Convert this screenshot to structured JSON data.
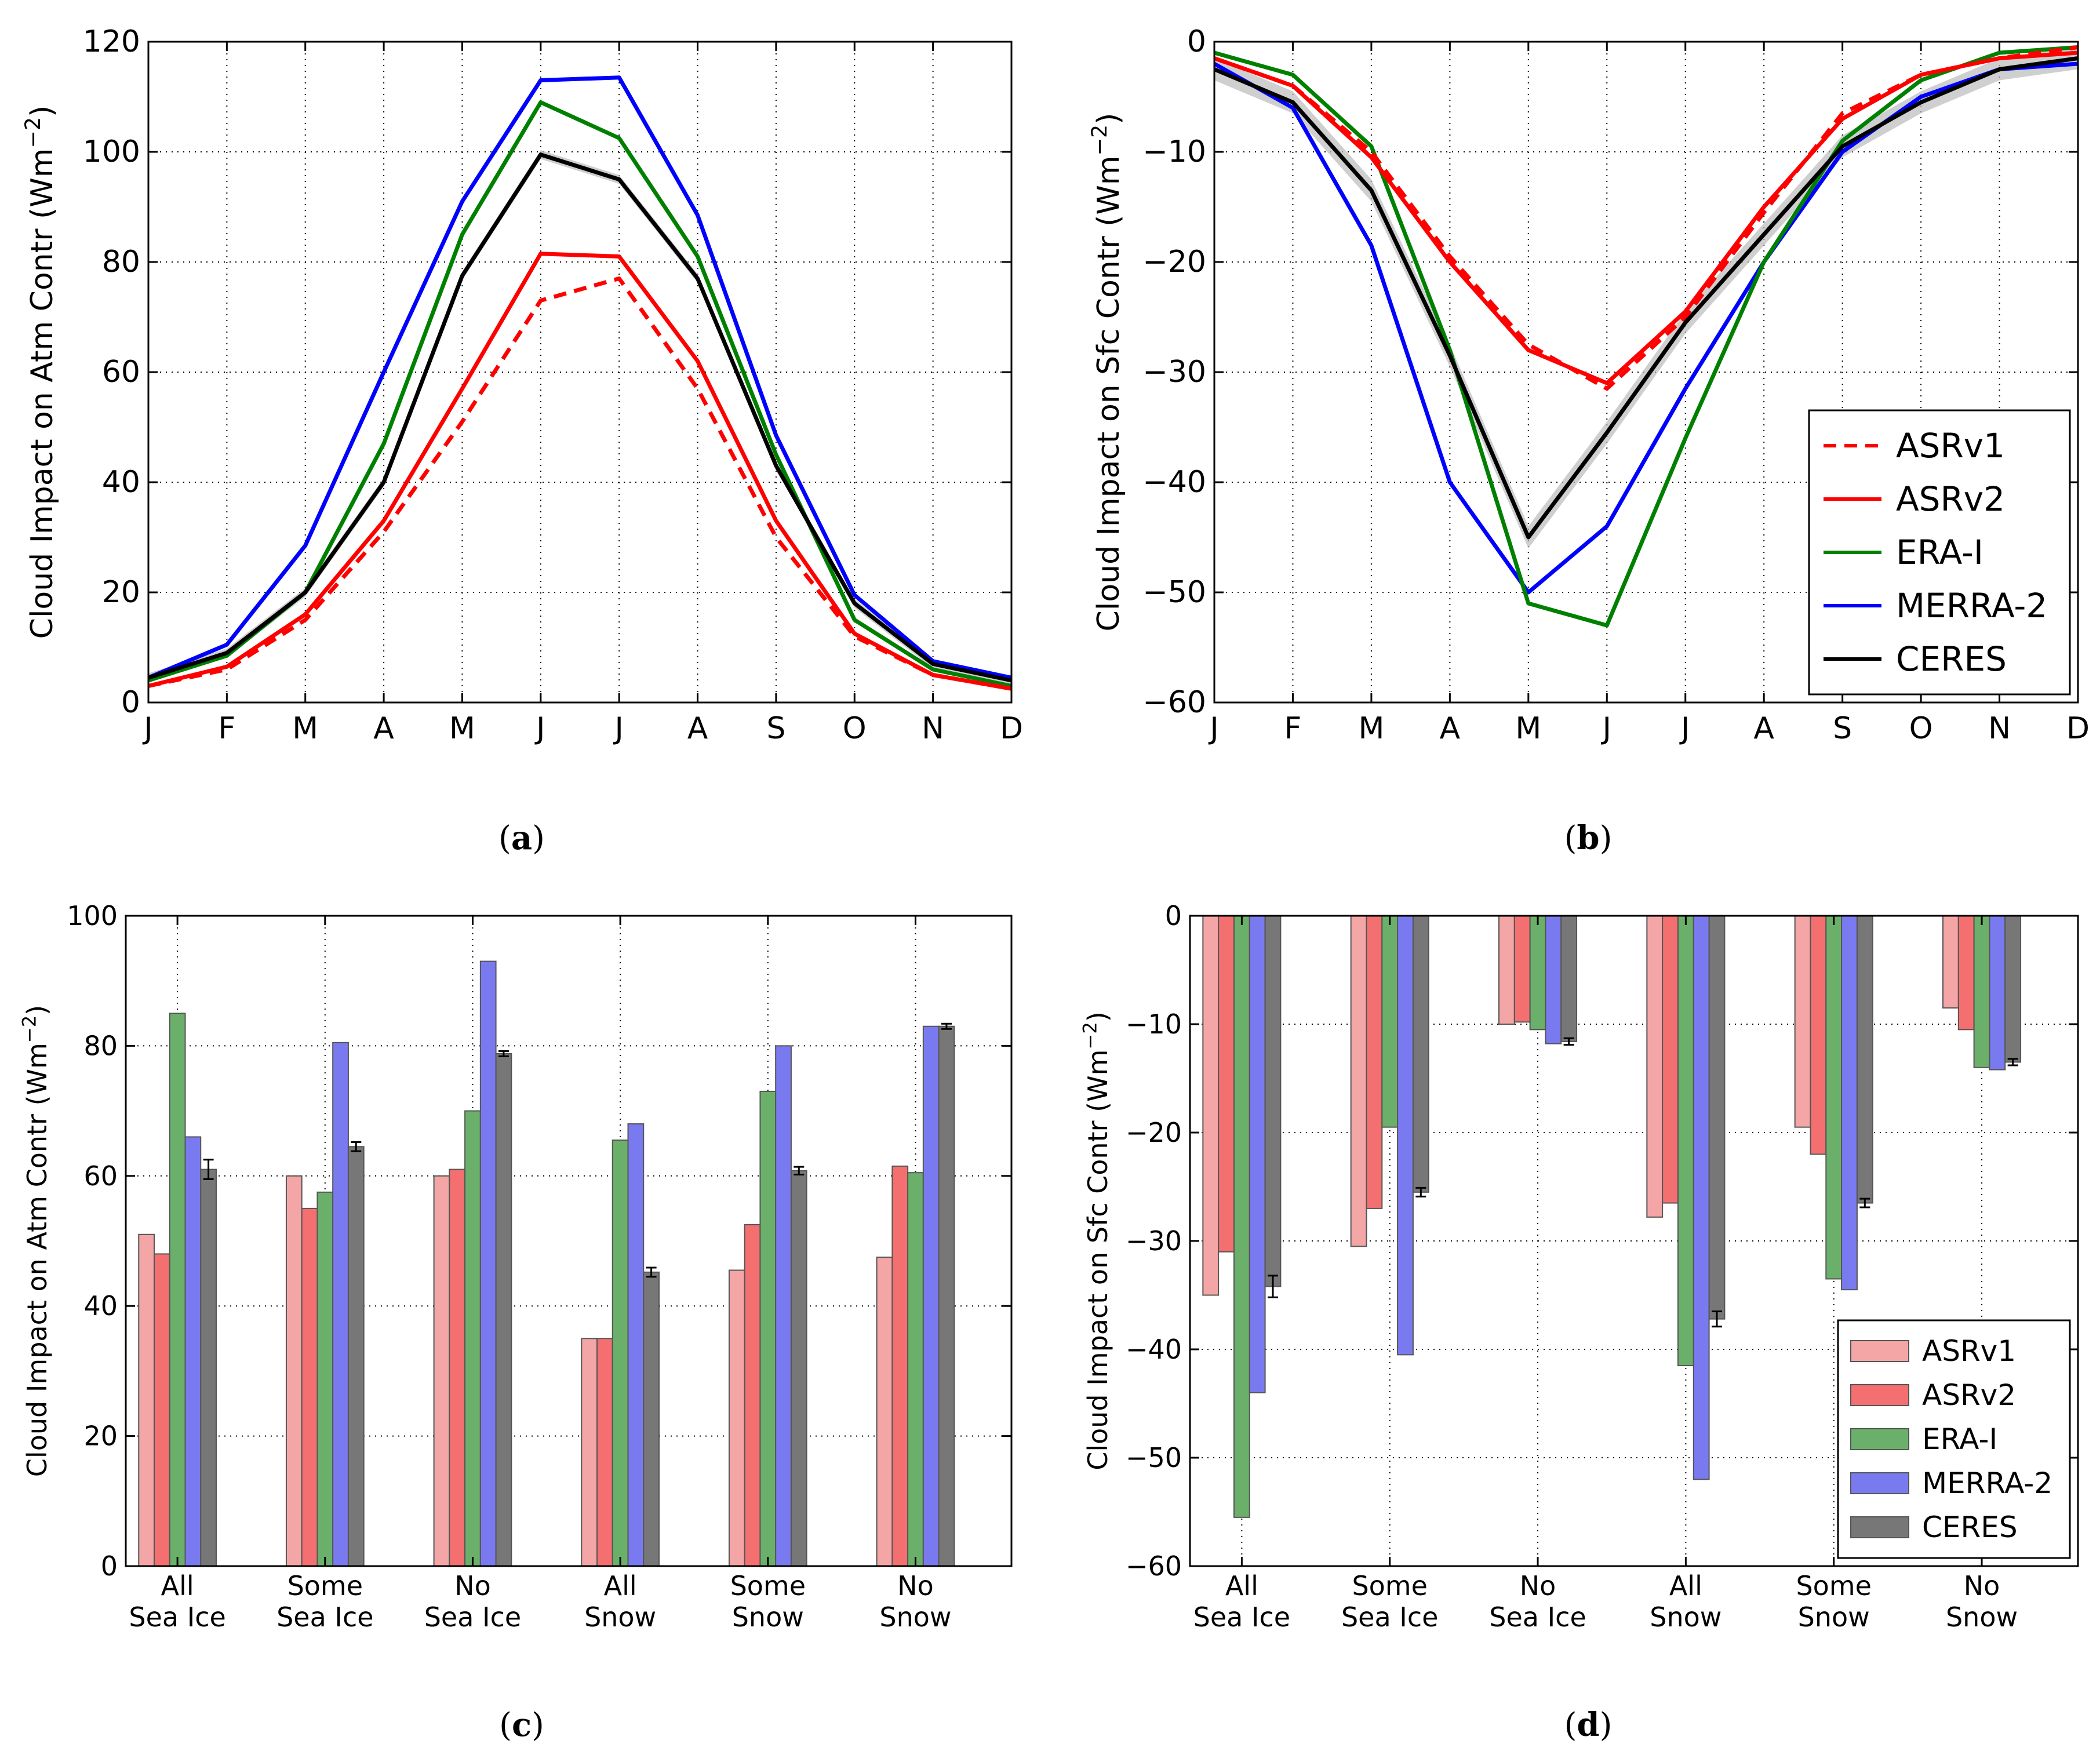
{
  "colors": {
    "ASRv1": "#ff0000",
    "ASRv2": "#ff0000",
    "ERA-I": "#008000",
    "MERRA-2": "#0000ff",
    "CERES": "#000000",
    "bar_ASRv1": "#f4a6a6",
    "bar_ASRv2": "#f47070",
    "bar_ERA-I": "#6ab06a",
    "bar_MERRA-2": "#7a7af0",
    "bar_CERES": "#777777"
  },
  "chart_data": [
    {
      "id": "a",
      "type": "line",
      "panel_label": "a",
      "ylabel": "Cloud Impact on Atm Contr (Wm",
      "ylabel_sup": "−2",
      "ylabel_end": ")",
      "categories": [
        "J",
        "F",
        "M",
        "A",
        "M",
        "J",
        "J",
        "A",
        "S",
        "O",
        "N",
        "D"
      ],
      "ylim": [
        0,
        120
      ],
      "yticks": [
        0,
        20,
        40,
        60,
        80,
        100,
        120
      ],
      "ytick_labels": [
        "0",
        "20",
        "40",
        "60",
        "80",
        "100",
        "120"
      ],
      "grid": true,
      "series": [
        {
          "name": "ASRv1",
          "style": "dashed",
          "values": [
            3.0,
            6.0,
            15.0,
            31.0,
            51.0,
            73.0,
            77.0,
            57.0,
            30.0,
            12.0,
            5.0,
            2.5
          ]
        },
        {
          "name": "ASRv2",
          "style": "solid",
          "values": [
            3.0,
            6.5,
            16.0,
            33.0,
            57.0,
            81.5,
            81.0,
            62.0,
            33.0,
            12.5,
            5.0,
            2.5
          ]
        },
        {
          "name": "ERA-I",
          "style": "solid",
          "values": [
            4.0,
            8.5,
            20.0,
            47.0,
            85.0,
            109.0,
            102.5,
            81.0,
            45.0,
            15.0,
            6.0,
            3.0
          ]
        },
        {
          "name": "MERRA-2",
          "style": "solid",
          "values": [
            4.5,
            10.5,
            28.5,
            60.0,
            91.0,
            113.0,
            113.5,
            88.5,
            48.5,
            19.5,
            7.5,
            4.5
          ]
        },
        {
          "name": "CERES",
          "style": "solid",
          "band": 0.8,
          "values": [
            4.5,
            9.0,
            20.0,
            40.0,
            77.5,
            99.5,
            95.0,
            77.0,
            43.0,
            18.0,
            7.0,
            4.0
          ]
        }
      ]
    },
    {
      "id": "b",
      "type": "line",
      "panel_label": "b",
      "ylabel": "Cloud Impact on Sfc Contr (Wm",
      "ylabel_sup": "−2",
      "ylabel_end": ")",
      "categories": [
        "J",
        "F",
        "M",
        "A",
        "M",
        "J",
        "J",
        "A",
        "S",
        "O",
        "N",
        "D"
      ],
      "ylim": [
        -60,
        0
      ],
      "yticks": [
        -60,
        -50,
        -40,
        -30,
        -20,
        -10,
        0
      ],
      "ytick_labels": [
        "−60",
        "−50",
        "−40",
        "−30",
        "−20",
        "−10",
        "0"
      ],
      "grid": true,
      "legend": "lower-right",
      "series": [
        {
          "name": "ASRv1",
          "style": "dashed",
          "values": [
            -1.5,
            -4.0,
            -10.0,
            -19.5,
            -27.5,
            -31.5,
            -25.0,
            -15.5,
            -6.5,
            -3.0,
            -1.5,
            -0.5
          ]
        },
        {
          "name": "ASRv2",
          "style": "solid",
          "values": [
            -1.5,
            -4.0,
            -10.5,
            -20.0,
            -28.0,
            -31.0,
            -24.5,
            -15.0,
            -7.0,
            -3.0,
            -1.5,
            -1.0
          ]
        },
        {
          "name": "ERA-I",
          "style": "solid",
          "values": [
            -1.0,
            -3.0,
            -9.5,
            -28.0,
            -51.0,
            -53.0,
            -36.0,
            -20.0,
            -9.0,
            -3.5,
            -1.0,
            -0.5
          ]
        },
        {
          "name": "MERRA-2",
          "style": "solid",
          "values": [
            -2.0,
            -6.0,
            -18.5,
            -40.0,
            -50.0,
            -44.0,
            -31.5,
            -20.0,
            -10.0,
            -5.0,
            -2.5,
            -2.0
          ]
        },
        {
          "name": "CERES",
          "style": "solid",
          "band": 1.0,
          "values": [
            -2.5,
            -5.5,
            -13.5,
            -28.5,
            -45.0,
            -35.5,
            -25.5,
            -17.5,
            -9.5,
            -5.5,
            -2.5,
            -1.5
          ]
        }
      ]
    },
    {
      "id": "c",
      "type": "bar",
      "panel_label": "c",
      "ylabel": "Cloud Impact on Atm Contr (Wm",
      "ylabel_sup": "−2",
      "ylabel_end": ")",
      "categories": [
        [
          "All",
          "Sea Ice"
        ],
        [
          "Some",
          "Sea Ice"
        ],
        [
          "No",
          "Sea Ice"
        ],
        [
          "All",
          "Snow"
        ],
        [
          "Some",
          "Snow"
        ],
        [
          "No",
          "Snow"
        ]
      ],
      "ylim": [
        0,
        100
      ],
      "yticks": [
        0,
        20,
        40,
        60,
        80,
        100
      ],
      "ytick_labels": [
        "0",
        "20",
        "40",
        "60",
        "80",
        "100"
      ],
      "grid": true,
      "series": [
        {
          "name": "ASRv1",
          "values": [
            51.0,
            60.0,
            60.0,
            35.0,
            45.5,
            47.5
          ]
        },
        {
          "name": "ASRv2",
          "values": [
            48.0,
            55.0,
            61.0,
            35.0,
            52.5,
            61.5
          ]
        },
        {
          "name": "ERA-I",
          "values": [
            85.0,
            57.5,
            70.0,
            65.5,
            73.0,
            60.5
          ]
        },
        {
          "name": "MERRA-2",
          "values": [
            66.0,
            80.5,
            93.0,
            68.0,
            80.0,
            83.0
          ]
        },
        {
          "name": "CERES",
          "values": [
            61.0,
            64.5,
            78.8,
            45.2,
            60.8,
            83.0
          ],
          "errors": [
            1.5,
            0.7,
            0.4,
            0.7,
            0.6,
            0.4
          ]
        }
      ]
    },
    {
      "id": "d",
      "type": "bar",
      "panel_label": "d",
      "ylabel": "Cloud Impact on Sfc Contr (Wm",
      "ylabel_sup": "−2",
      "ylabel_end": ")",
      "categories": [
        [
          "All",
          "Sea Ice"
        ],
        [
          "Some",
          "Sea Ice"
        ],
        [
          "No",
          "Sea Ice"
        ],
        [
          "All",
          "Snow"
        ],
        [
          "Some",
          "Snow"
        ],
        [
          "No",
          "Snow"
        ]
      ],
      "ylim": [
        -60,
        0
      ],
      "yticks": [
        -60,
        -50,
        -40,
        -30,
        -20,
        -10,
        0
      ],
      "ytick_labels": [
        "−60",
        "−50",
        "−40",
        "−30",
        "−20",
        "−10",
        "0"
      ],
      "grid": true,
      "legend": "lower-right",
      "series": [
        {
          "name": "ASRv1",
          "values": [
            -35.0,
            -30.5,
            -10.0,
            -27.8,
            -19.5,
            -8.5
          ]
        },
        {
          "name": "ASRv2",
          "values": [
            -31.0,
            -27.0,
            -9.8,
            -26.5,
            -22.0,
            -10.5
          ]
        },
        {
          "name": "ERA-I",
          "values": [
            -55.5,
            -19.5,
            -10.5,
            -41.5,
            -33.5,
            -14.0
          ]
        },
        {
          "name": "MERRA-2",
          "values": [
            -44.0,
            -40.5,
            -11.8,
            -52.0,
            -34.5,
            -14.2
          ]
        },
        {
          "name": "CERES",
          "values": [
            -34.2,
            -25.5,
            -11.6,
            -37.2,
            -26.5,
            -13.5
          ],
          "errors": [
            1.0,
            0.4,
            0.3,
            0.7,
            0.4,
            0.3
          ]
        }
      ]
    }
  ]
}
